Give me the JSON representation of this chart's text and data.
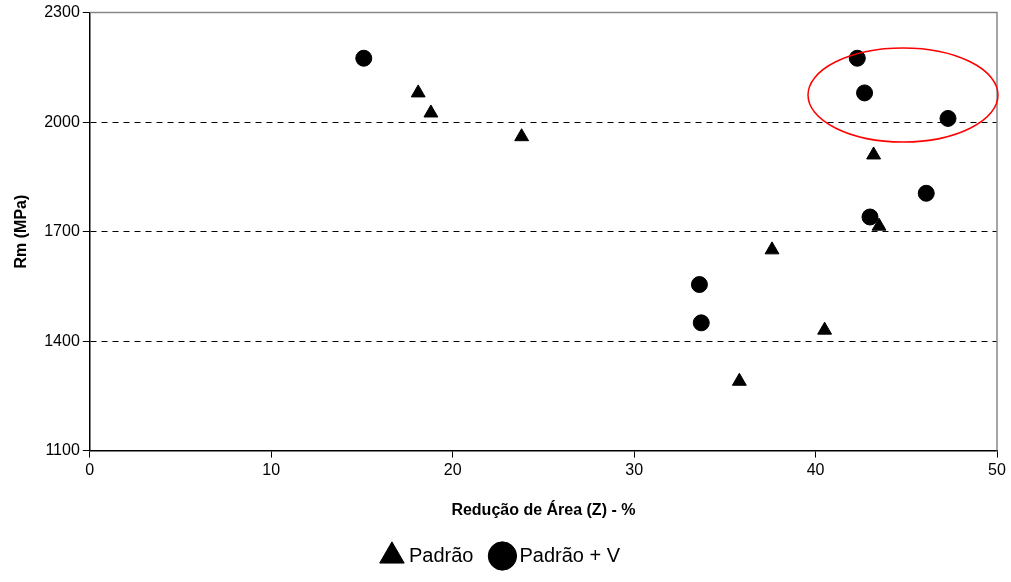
{
  "chart_data": {
    "type": "scatter",
    "xlabel": "Redução de Área (Z) - %",
    "ylabel": "Rm (MPa)",
    "xlim": [
      0,
      50
    ],
    "xticks": [
      0,
      10,
      20,
      30,
      40,
      50
    ],
    "ylim": [
      1100,
      2300
    ],
    "yticks": [
      1100,
      1400,
      1700,
      2000,
      2300
    ],
    "grid": "y",
    "legend": "bottom",
    "series": [
      {
        "name": "Padrão",
        "color": "#000000",
        "marker": "triangle",
        "x": [
          18.1,
          18.8,
          23.8,
          43.2,
          43.5,
          37.6,
          40.5,
          35.8
        ],
        "values": [
          2080,
          2025,
          1960,
          1910,
          1715,
          1650,
          1430,
          1290
        ]
      },
      {
        "name": "Padrão + V",
        "color": "#000000",
        "marker": "circle",
        "x": [
          15.1,
          42.3,
          42.7,
          47.3,
          46.1,
          43.0,
          33.6,
          33.7
        ],
        "values": [
          2175,
          2175,
          2080,
          2010,
          1805,
          1740,
          1555,
          1450
        ]
      }
    ]
  }
}
